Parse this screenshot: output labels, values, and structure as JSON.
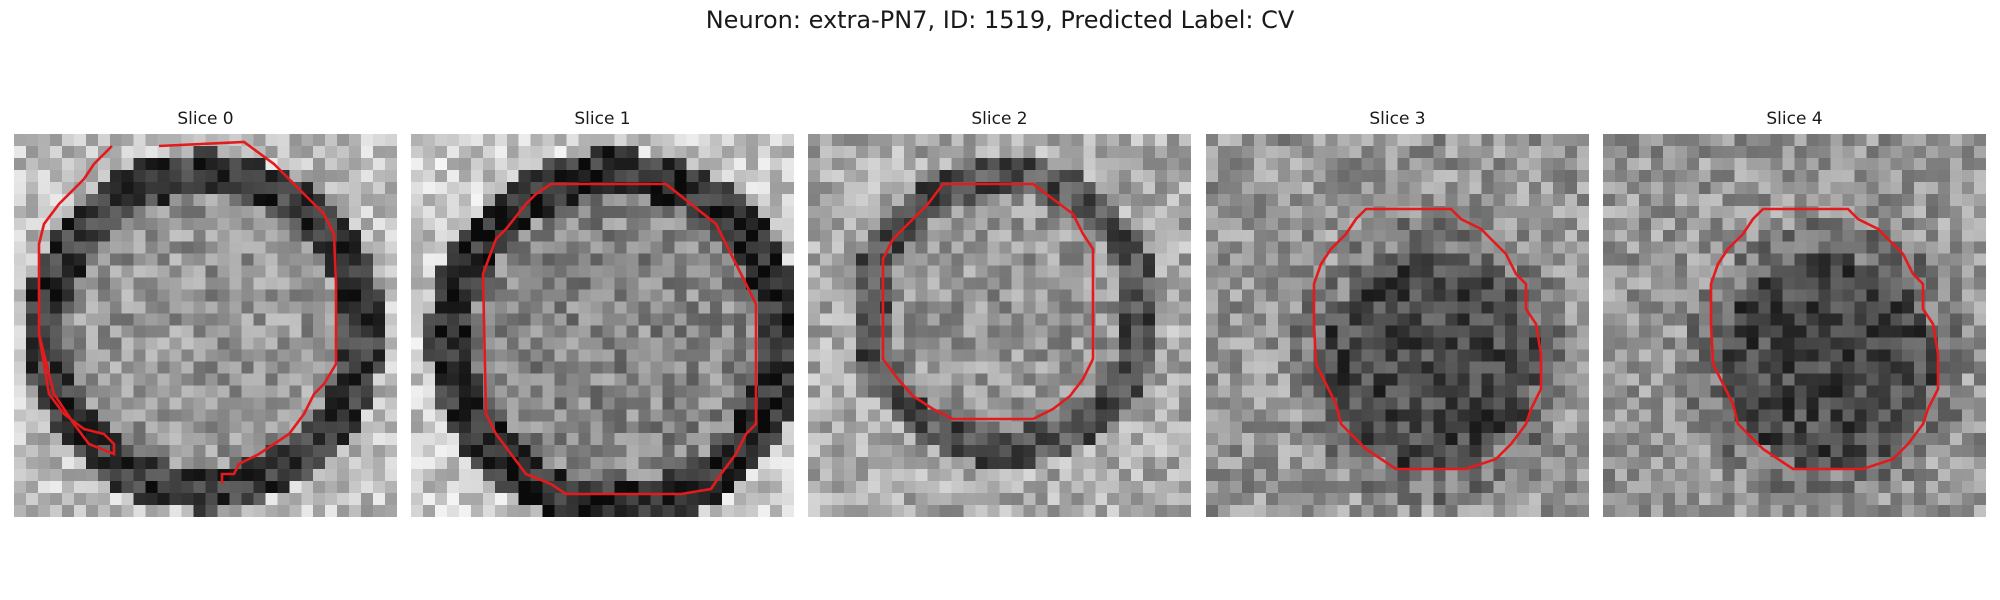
{
  "figure": {
    "title": "Neuron: extra-PN7, ID: 1519, Predicted Label: CV",
    "contour_color": "#e41a1c"
  },
  "panels": [
    {
      "title": "Slice 0"
    },
    {
      "title": "Slice 1"
    },
    {
      "title": "Slice 2"
    },
    {
      "title": "Slice 3"
    },
    {
      "title": "Slice 4"
    }
  ]
}
